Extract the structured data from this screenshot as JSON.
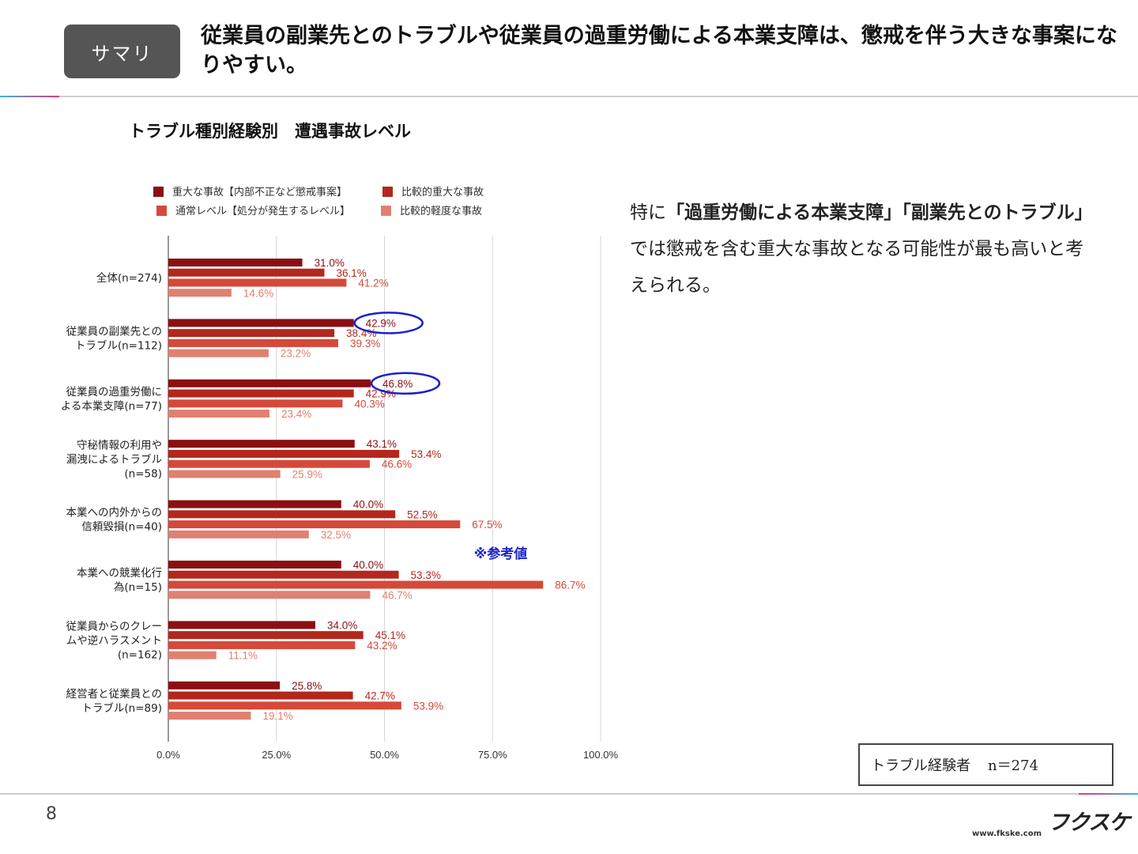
{
  "header": {
    "badge": "サマリ",
    "headline": "従業員の副業先とのトラブルや従業員の過重労働による本業支障は、懲戒を伴う大きな事案になりやすい。"
  },
  "side": {
    "p1": "特に",
    "b1": "「過重労働による本業支障」「副業先とのトラブル」",
    "p2": "では懲戒を含む重大な事故となる可能性が最も高いと考えられる。"
  },
  "annotation": "※参考値",
  "note": {
    "label": "トラブル経験者",
    "n": "n＝274"
  },
  "footer": {
    "page": "8",
    "logo": "フクスケ",
    "url": "www.fkske.com"
  },
  "chart_data": {
    "type": "bar",
    "orientation": "horizontal",
    "title": "トラブル種別経験別　遭遇事故レベル",
    "categories": [
      [
        "全体(n=274)"
      ],
      [
        "従業員の副業先との",
        "トラブル(n=112)"
      ],
      [
        "従業員の過重労働に",
        "よる本業支障(n=77)"
      ],
      [
        "守秘情報の利用や",
        "漏洩によるトラブル",
        "(n=58)"
      ],
      [
        "本業への内外からの",
        "信頼毀損(n=40)"
      ],
      [
        "本業への競業化行",
        "為(n=15)"
      ],
      [
        "従業員からのクレー",
        "ムや逆ハラスメント",
        "(n=162)"
      ],
      [
        "経営者と従業員との",
        "トラブル(n=89)"
      ]
    ],
    "series": [
      {
        "name": "重大な事故【内部不正など懲戒事案】",
        "color": "#8b0f12",
        "label_color": "#8b0f12",
        "values": [
          31.0,
          42.9,
          46.8,
          43.1,
          40.0,
          40.0,
          34.0,
          25.8
        ]
      },
      {
        "name": "比較的重大な事故",
        "color": "#b3271c",
        "label_color": "#b3271c",
        "values": [
          36.1,
          38.4,
          42.9,
          53.4,
          52.5,
          53.3,
          45.1,
          42.7
        ]
      },
      {
        "name": "通常レベル【処分が発生するレベル】",
        "color": "#d4493a",
        "label_color": "#d4493a",
        "values": [
          41.2,
          39.3,
          40.3,
          46.6,
          67.5,
          86.7,
          43.2,
          53.9
        ]
      },
      {
        "name": "比較的軽度な事故",
        "color": "#e08070",
        "label_color": "#e08070",
        "values": [
          14.6,
          23.2,
          23.4,
          25.9,
          32.5,
          46.7,
          11.1,
          19.1
        ]
      }
    ],
    "value_unit": "%",
    "xlim": [
      0,
      100
    ],
    "xticks": [
      "0.0%",
      "25.0%",
      "50.0%",
      "75.0%",
      "100.0%"
    ],
    "legend_position": "top",
    "grid": true,
    "highlights": [
      {
        "category_index": 1,
        "series_index": 0,
        "mark": "blue-ellipse"
      },
      {
        "category_index": 2,
        "series_index": 0,
        "mark": "blue-ellipse"
      }
    ]
  }
}
